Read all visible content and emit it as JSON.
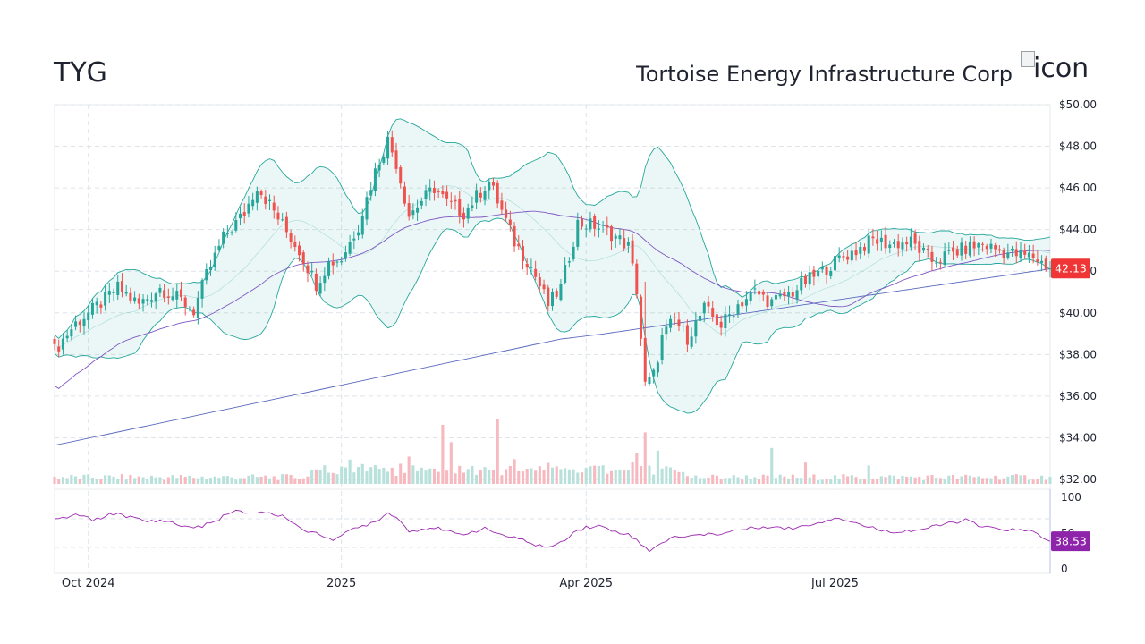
{
  "header": {
    "ticker": "TYG",
    "company_name": "Tortoise Energy Infrastructure Corp",
    "logo_alt": "icon"
  },
  "chart_data": [
    {
      "type": "candlestick",
      "price_axis_labels": [
        "$50.00",
        "$48.00",
        "$46.00",
        "$44.00",
        "$42.00",
        "$40.00",
        "$38.00",
        "$36.00",
        "$34.00",
        "$32.00"
      ],
      "ylim": [
        32,
        50
      ],
      "x_labels": [
        {
          "label": "Oct 2024",
          "index": 8
        },
        {
          "label": "2025",
          "index": 68
        },
        {
          "label": "Apr 2025",
          "index": 126
        },
        {
          "label": "Jul 2025",
          "index": 185
        }
      ],
      "num_bars": 237,
      "last_price": 42.13,
      "last_price_label": "42.13",
      "grid": true,
      "overlays": [
        "Bollinger Bands (20)",
        "SMA 50",
        "SMA 200",
        "Volume"
      ],
      "price_path": [
        [
          0,
          38.2
        ],
        [
          5,
          39.5
        ],
        [
          10,
          40.3
        ],
        [
          15,
          41.2
        ],
        [
          20,
          40.4
        ],
        [
          25,
          41.2
        ],
        [
          30,
          40.6
        ],
        [
          33,
          40.1
        ],
        [
          36,
          41.8
        ],
        [
          40,
          43.6
        ],
        [
          45,
          44.8
        ],
        [
          48,
          46.1
        ],
        [
          51,
          45.2
        ],
        [
          55,
          43.9
        ],
        [
          58,
          43.0
        ],
        [
          62,
          41.4
        ],
        [
          65,
          42.4
        ],
        [
          68,
          42.6
        ],
        [
          72,
          44.2
        ],
        [
          76,
          46.8
        ],
        [
          79,
          48.3
        ],
        [
          81,
          47.2
        ],
        [
          84,
          44.7
        ],
        [
          87,
          45.4
        ],
        [
          90,
          46.0
        ],
        [
          93,
          45.3
        ],
        [
          97,
          44.8
        ],
        [
          100,
          45.6
        ],
        [
          103,
          46.3
        ],
        [
          106,
          44.9
        ],
        [
          109,
          43.4
        ],
        [
          113,
          42.2
        ],
        [
          117,
          40.4
        ],
        [
          120,
          41.2
        ],
        [
          124,
          44.3
        ],
        [
          128,
          44.2
        ],
        [
          132,
          43.8
        ],
        [
          136,
          43.2
        ],
        [
          138,
          41.1
        ],
        [
          140,
          36.5
        ],
        [
          142,
          37.0
        ],
        [
          144,
          38.8
        ],
        [
          147,
          39.7
        ],
        [
          150,
          38.8
        ],
        [
          154,
          40.2
        ],
        [
          158,
          39.4
        ],
        [
          162,
          40.4
        ],
        [
          166,
          41.0
        ],
        [
          170,
          40.5
        ],
        [
          175,
          41.0
        ],
        [
          178,
          41.5
        ],
        [
          182,
          42.0
        ],
        [
          186,
          42.6
        ],
        [
          190,
          43.0
        ],
        [
          194,
          43.5
        ],
        [
          198,
          43.3
        ],
        [
          203,
          43.4
        ],
        [
          208,
          42.5
        ],
        [
          212,
          42.8
        ],
        [
          216,
          43.1
        ],
        [
          220,
          43.3
        ],
        [
          224,
          43.0
        ],
        [
          228,
          42.8
        ],
        [
          232,
          42.7
        ],
        [
          236,
          42.13
        ]
      ],
      "volume_ylim": [
        0,
        100
      ]
    },
    {
      "type": "line",
      "name": "RSI",
      "ylim": [
        0,
        100
      ],
      "axis_labels": [
        "100",
        "50",
        "0"
      ],
      "last_value": 38.53,
      "last_value_label": "38.53",
      "path": [
        [
          0,
          68
        ],
        [
          3,
          72
        ],
        [
          6,
          76
        ],
        [
          9,
          67
        ],
        [
          12,
          74
        ],
        [
          15,
          78
        ],
        [
          18,
          72
        ],
        [
          22,
          66
        ],
        [
          26,
          68
        ],
        [
          30,
          60
        ],
        [
          34,
          58
        ],
        [
          38,
          66
        ],
        [
          40,
          74
        ],
        [
          43,
          80
        ],
        [
          46,
          78
        ],
        [
          49,
          80
        ],
        [
          52,
          76
        ],
        [
          55,
          72
        ],
        [
          58,
          58
        ],
        [
          61,
          50
        ],
        [
          64,
          46
        ],
        [
          66,
          42
        ],
        [
          68,
          46
        ],
        [
          71,
          56
        ],
        [
          74,
          62
        ],
        [
          77,
          70
        ],
        [
          79,
          78
        ],
        [
          81,
          74
        ],
        [
          84,
          52
        ],
        [
          87,
          56
        ],
        [
          90,
          58
        ],
        [
          93,
          52
        ],
        [
          96,
          48
        ],
        [
          99,
          52
        ],
        [
          102,
          56
        ],
        [
          105,
          50
        ],
        [
          108,
          44
        ],
        [
          111,
          40
        ],
        [
          114,
          34
        ],
        [
          117,
          30
        ],
        [
          120,
          36
        ],
        [
          123,
          52
        ],
        [
          126,
          58
        ],
        [
          129,
          60
        ],
        [
          132,
          54
        ],
        [
          135,
          50
        ],
        [
          137,
          45
        ],
        [
          139,
          34
        ],
        [
          141,
          26
        ],
        [
          143,
          34
        ],
        [
          146,
          42
        ],
        [
          149,
          46
        ],
        [
          152,
          46
        ],
        [
          155,
          50
        ],
        [
          158,
          48
        ],
        [
          161,
          54
        ],
        [
          164,
          56
        ],
        [
          167,
          58
        ],
        [
          170,
          60
        ],
        [
          173,
          56
        ],
        [
          176,
          58
        ],
        [
          179,
          62
        ],
        [
          182,
          66
        ],
        [
          185,
          72
        ],
        [
          188,
          68
        ],
        [
          192,
          60
        ],
        [
          196,
          54
        ],
        [
          200,
          52
        ],
        [
          204,
          54
        ],
        [
          208,
          58
        ],
        [
          212,
          64
        ],
        [
          216,
          68
        ],
        [
          220,
          58
        ],
        [
          224,
          56
        ],
        [
          228,
          54
        ],
        [
          232,
          52
        ],
        [
          236,
          38.53
        ]
      ]
    }
  ],
  "colors": {
    "up": "#26a69a",
    "down": "#ef5350",
    "band_line": "#26a69a",
    "band_fill": "#26a69a",
    "sma200": "#5c6bc0",
    "sma50": "#7e57c2",
    "rsi": "#9c27b0",
    "price_badge": "#ef3535",
    "rsi_badge": "#8e24aa"
  }
}
